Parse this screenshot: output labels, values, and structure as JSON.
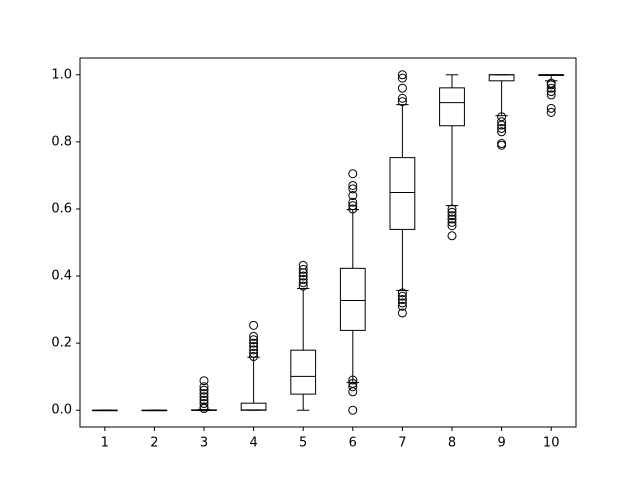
{
  "chart_data": {
    "type": "box",
    "categories": [
      "1",
      "2",
      "3",
      "4",
      "5",
      "6",
      "7",
      "8",
      "9",
      "10"
    ],
    "color": "#000000",
    "boxes": [
      {
        "whislo": 0,
        "q1": 0,
        "med": 0,
        "q3": 0,
        "whishi": 0,
        "fliers": []
      },
      {
        "whislo": 0,
        "q1": 0,
        "med": 0,
        "q3": 0,
        "whishi": 0,
        "fliers": []
      },
      {
        "whislo": 0,
        "q1": 0,
        "med": 0,
        "q3": 0.001,
        "whishi": 0.002,
        "fliers": [
          0.005,
          0.01,
          0.02,
          0.03,
          0.04,
          0.05,
          0.06,
          0.07,
          0.088
        ]
      },
      {
        "whislo": 0,
        "q1": 0,
        "med": 0.001,
        "q3": 0.021,
        "whishi": 0.158,
        "fliers": [
          0.16,
          0.17,
          0.18,
          0.19,
          0.2,
          0.21,
          0.22,
          0.253
        ]
      },
      {
        "whislo": 0,
        "q1": 0.048,
        "med": 0.101,
        "q3": 0.179,
        "whishi": 0.363,
        "fliers": [
          0.37,
          0.38,
          0.39,
          0.4,
          0.41,
          0.42,
          0.432
        ]
      },
      {
        "whislo": 0.083,
        "q1": 0.238,
        "med": 0.327,
        "q3": 0.423,
        "whishi": 0.598,
        "fliers": [
          0,
          0.055,
          0.07,
          0.08,
          0.09,
          0.6,
          0.61,
          0.62,
          0.64,
          0.66,
          0.67,
          0.705
        ]
      },
      {
        "whislo": 0.357,
        "q1": 0.539,
        "med": 0.649,
        "q3": 0.753,
        "whishi": 0.911,
        "fliers": [
          0.29,
          0.31,
          0.32,
          0.33,
          0.34,
          0.35,
          0.92,
          0.93,
          0.96,
          0.99,
          1.0
        ]
      },
      {
        "whislo": 0.61,
        "q1": 0.848,
        "med": 0.917,
        "q3": 0.961,
        "whishi": 1.0,
        "fliers": [
          0.52,
          0.55,
          0.56,
          0.57,
          0.58,
          0.59,
          0.6
        ]
      },
      {
        "whislo": 0.878,
        "q1": 0.982,
        "med": 1.0,
        "q3": 1.0,
        "whishi": 1.0,
        "fliers": [
          0.79,
          0.795,
          0.83,
          0.84,
          0.85,
          0.86,
          0.875
        ]
      },
      {
        "whislo": 0.982,
        "q1": 0.998,
        "med": 1.0,
        "q3": 1.0,
        "whishi": 1.0,
        "fliers": [
          0.888,
          0.9,
          0.94,
          0.95,
          0.96,
          0.97,
          0.975
        ]
      }
    ],
    "ylim": [
      -0.05,
      1.05
    ],
    "yticks": [
      {
        "value": 0,
        "label": "0.0"
      },
      0.2,
      0.4,
      0.6,
      0.8,
      {
        "value": 1,
        "label": "1.0"
      }
    ]
  }
}
